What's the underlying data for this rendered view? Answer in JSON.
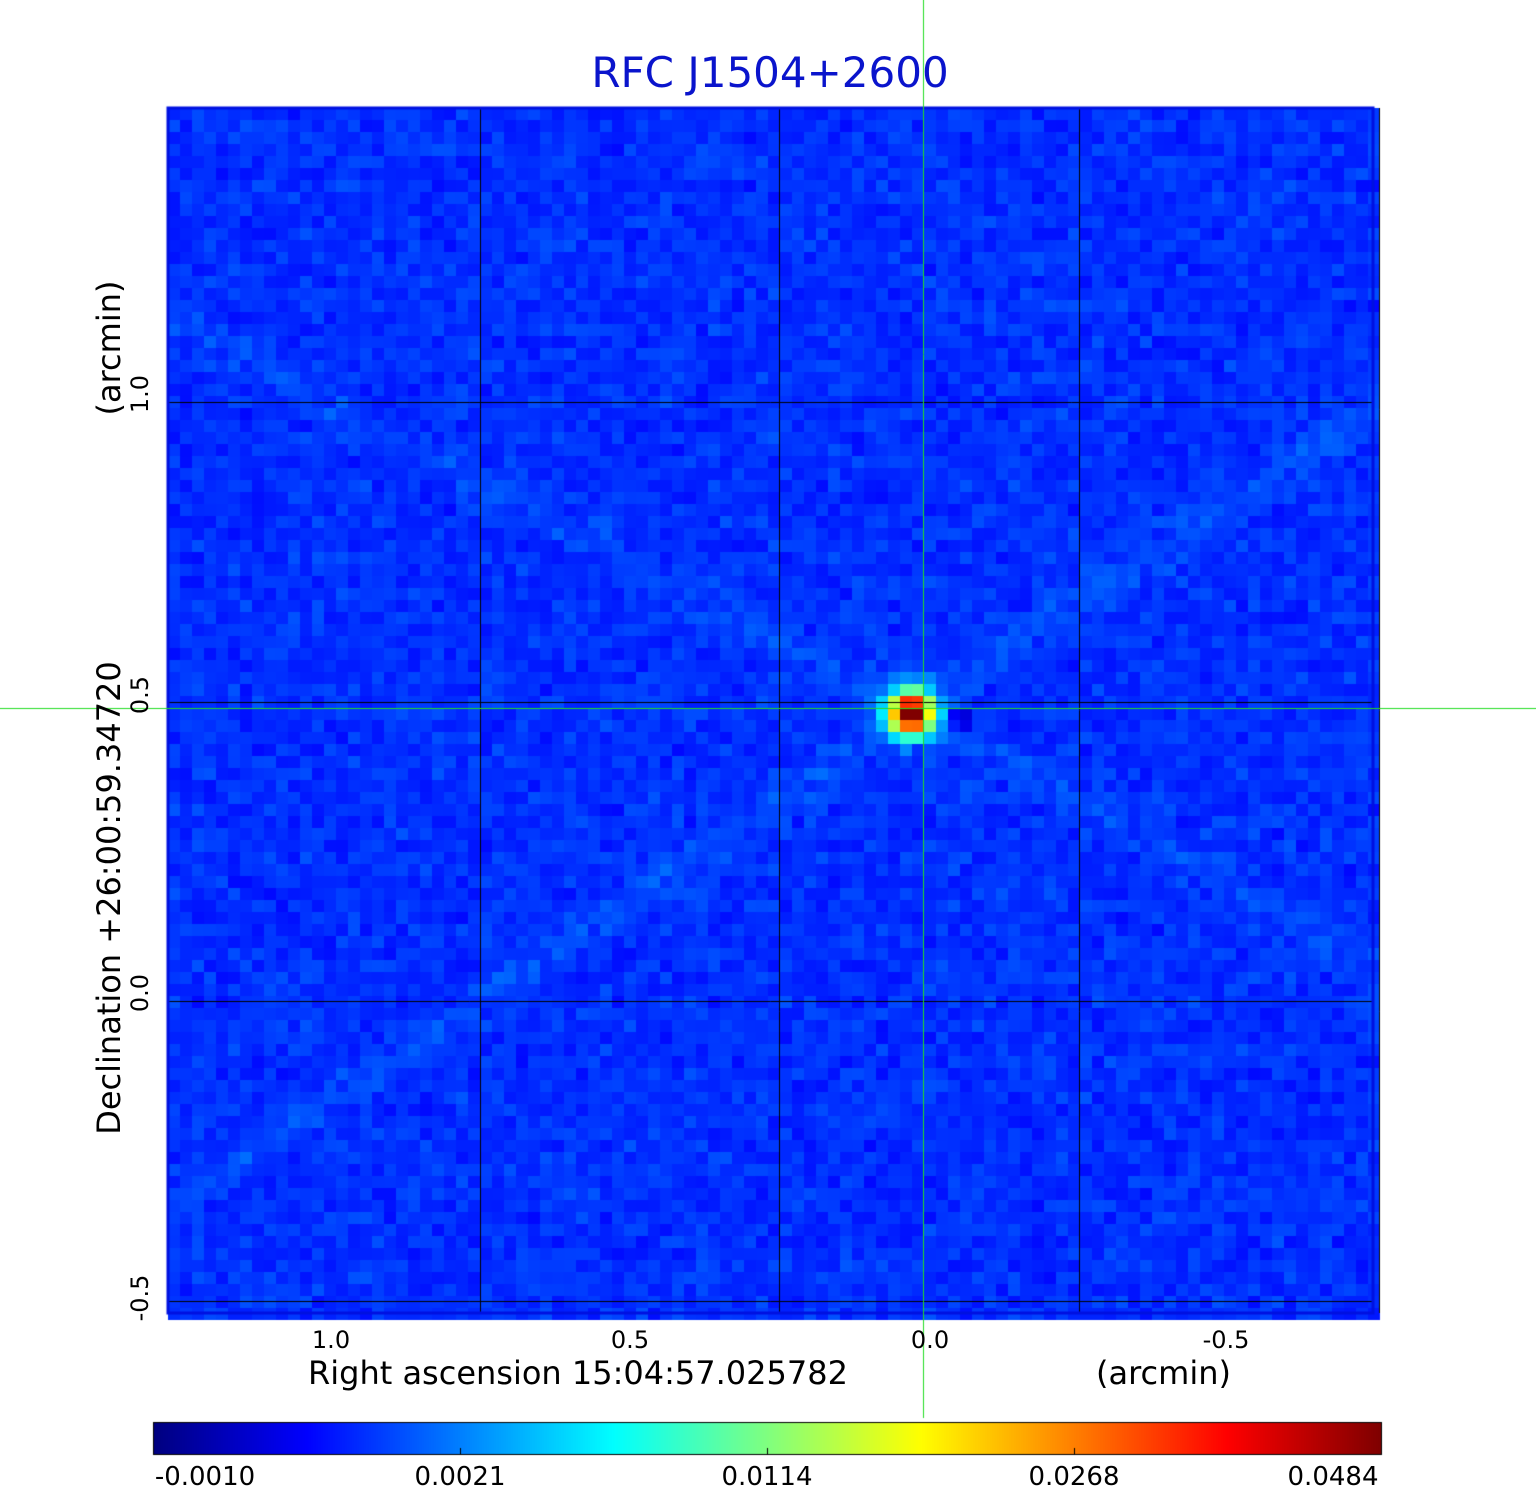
{
  "chart_data": {
    "type": "heatmap",
    "title": "RFC J1504+2600",
    "xlabel": "Right ascension  15:04:57.025782",
    "x_unit": "(arcmin)",
    "ylabel": "Declination  +26:00:59.34720",
    "y_unit": "(arcmin)",
    "x_range_arcmin": [
      1.52,
      -0.49
    ],
    "y_range_arcmin": [
      -0.52,
      1.49
    ],
    "x_ticks": [
      1.0,
      0.5,
      0.0,
      -0.5
    ],
    "x_tick_labels": [
      "1.0",
      "0.5",
      "0.0",
      "-0.5"
    ],
    "y_ticks": [
      -0.5,
      0.0,
      0.5,
      1.0
    ],
    "y_tick_labels": [
      "-0.5",
      "0.0",
      "0.5",
      "1.0"
    ],
    "grid": true,
    "crosshair_arcmin": {
      "x": 0.26,
      "y": 0.49
    },
    "source_peak_arcmin": {
      "x": 0.28,
      "y": 0.48
    },
    "colormap": "jet",
    "colorbar": {
      "placement": "bottom",
      "ticks": [
        -0.001,
        0.0021,
        0.0114,
        0.0268,
        0.0484
      ],
      "tick_labels": [
        "-0.0010",
        "0.0021",
        "0.0114",
        "0.0268",
        "0.0484"
      ],
      "min": -0.001,
      "max": 0.0484
    }
  },
  "colors": {
    "title": "#0a14cc",
    "frame": "#0010e0",
    "grid": "#000000",
    "crosshair": "#22dd22",
    "background_map": "#1e5cf5"
  }
}
